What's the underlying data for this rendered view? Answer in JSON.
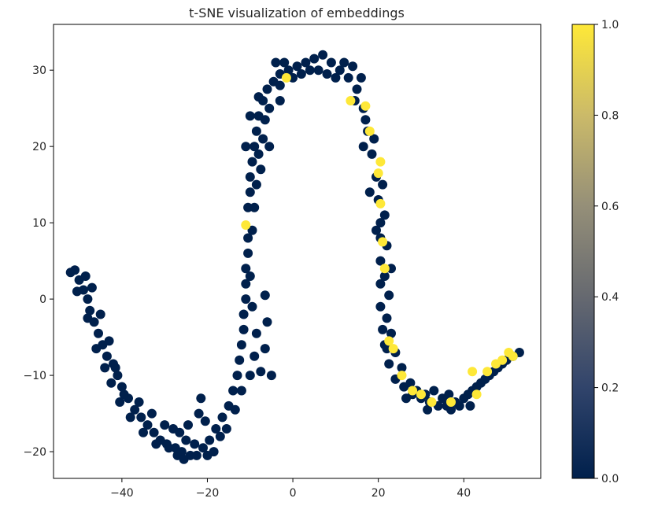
{
  "chart_data": {
    "type": "scatter",
    "title": "t-SNE visualization of embeddings",
    "xlabel": "",
    "ylabel": "",
    "xlim": [
      -56,
      58
    ],
    "ylim": [
      -23.5,
      36
    ],
    "x_ticks": [
      -40,
      -20,
      0,
      20,
      40
    ],
    "x_tick_labels": [
      "−40",
      "−20",
      "0",
      "20",
      "40"
    ],
    "y_ticks": [
      -20,
      -10,
      0,
      10,
      20,
      30
    ],
    "y_tick_labels": [
      "−20",
      "−10",
      "0",
      "10",
      "20",
      "30"
    ],
    "colorbar": {
      "colormap": "cividis",
      "range": [
        0.0,
        1.0
      ],
      "ticks": [
        0.0,
        0.2,
        0.4,
        0.6,
        0.8,
        1.0
      ],
      "tick_labels": [
        "0.0",
        "0.2",
        "0.4",
        "0.6",
        "0.8",
        "1.0"
      ]
    },
    "colors": {
      "low": "#00204c",
      "high": "#fee838"
    },
    "grid": false,
    "points_label_0": [
      [
        -51,
        3.8
      ],
      [
        -50,
        2.5
      ],
      [
        -49,
        1.2
      ],
      [
        -48,
        0
      ],
      [
        -47.5,
        -1.5
      ],
      [
        -46.5,
        -3
      ],
      [
        -45.5,
        -4.5
      ],
      [
        -44.5,
        -6
      ],
      [
        -43.5,
        -7.5
      ],
      [
        -42,
        -8.5
      ],
      [
        -41,
        -10
      ],
      [
        -40,
        -11.5
      ],
      [
        -38.5,
        -13
      ],
      [
        -37,
        -14.5
      ],
      [
        -35.5,
        -15.5
      ],
      [
        -34,
        -16.5
      ],
      [
        -32.5,
        -17.5
      ],
      [
        -31,
        -18.5
      ],
      [
        -29.5,
        -19
      ],
      [
        -27.5,
        -19.5
      ],
      [
        -26,
        -20
      ],
      [
        -24,
        -20.5
      ],
      [
        -22.5,
        -20.5
      ],
      [
        -21,
        -19.5
      ],
      [
        -19.5,
        -18.5
      ],
      [
        -18,
        -17
      ],
      [
        -16.5,
        -15.5
      ],
      [
        -15,
        -14
      ],
      [
        -14,
        -12
      ],
      [
        -13,
        -10
      ],
      [
        -12.5,
        -8
      ],
      [
        -12,
        -6
      ],
      [
        -11.5,
        -4
      ],
      [
        -11.5,
        -2
      ],
      [
        -11,
        0
      ],
      [
        -11,
        2
      ],
      [
        -11,
        4
      ],
      [
        -10.5,
        6
      ],
      [
        -10.5,
        8
      ],
      [
        -10.5,
        12
      ],
      [
        -10,
        14
      ],
      [
        -10,
        16
      ],
      [
        -9.5,
        18
      ],
      [
        -9,
        20
      ],
      [
        -8.5,
        22
      ],
      [
        -8,
        24
      ],
      [
        -7,
        26
      ],
      [
        -6,
        27.5
      ],
      [
        -4.5,
        28.5
      ],
      [
        -3,
        29.5
      ],
      [
        -1,
        30
      ],
      [
        1,
        30.5
      ],
      [
        3,
        31
      ],
      [
        5,
        31.5
      ],
      [
        7,
        32
      ],
      [
        9,
        31
      ],
      [
        11,
        30
      ],
      [
        13,
        29
      ],
      [
        15,
        27.5
      ],
      [
        16.5,
        25
      ],
      [
        17.5,
        22
      ],
      [
        18.5,
        19
      ],
      [
        19.5,
        16
      ],
      [
        20,
        13
      ],
      [
        20.5,
        10
      ],
      [
        20.5,
        8
      ],
      [
        20.5,
        5
      ],
      [
        20.5,
        2
      ],
      [
        20.5,
        -1
      ],
      [
        21,
        -4
      ],
      [
        21.5,
        -6
      ],
      [
        22.5,
        -8.5
      ],
      [
        24,
        -10.5
      ],
      [
        26,
        -11.5
      ],
      [
        28,
        -12.5
      ],
      [
        30,
        -13
      ],
      [
        32,
        -13.5
      ],
      [
        34,
        -14
      ],
      [
        36,
        -14
      ],
      [
        38,
        -13.5
      ],
      [
        40,
        -13
      ],
      [
        42,
        -12
      ],
      [
        44,
        -11
      ],
      [
        46,
        -10
      ],
      [
        48,
        -9
      ],
      [
        50,
        -8
      ],
      [
        51.5,
        -7.5
      ],
      [
        53,
        -7
      ],
      [
        -48.5,
        3
      ],
      [
        -47,
        1.5
      ],
      [
        -45,
        -2
      ],
      [
        -43,
        -5.5
      ],
      [
        -41.5,
        -9
      ],
      [
        -39.5,
        -12.5
      ],
      [
        -36,
        -13.5
      ],
      [
        -33,
        -15
      ],
      [
        -30,
        -16.5
      ],
      [
        -28,
        -17
      ],
      [
        -25,
        -18.5
      ],
      [
        -23,
        -19
      ],
      [
        -20,
        -20.5
      ],
      [
        -18.5,
        -20
      ],
      [
        -17,
        -18
      ],
      [
        -15.5,
        -17
      ],
      [
        -13.5,
        -14.5
      ],
      [
        -12,
        -12
      ],
      [
        -10,
        -10
      ],
      [
        -9,
        -7.5
      ],
      [
        -8.5,
        -4.5
      ],
      [
        -9.5,
        -1
      ],
      [
        -10,
        3
      ],
      [
        -9.5,
        9
      ],
      [
        -9,
        12
      ],
      [
        -8.5,
        15
      ],
      [
        -8,
        19
      ],
      [
        -7,
        21
      ],
      [
        -6.5,
        23.5
      ],
      [
        -5.5,
        25
      ],
      [
        -7.5,
        17
      ],
      [
        -5.5,
        20
      ],
      [
        -6.5,
        0.5
      ],
      [
        -6,
        -3
      ],
      [
        -6.5,
        -6.5
      ],
      [
        -7.5,
        -9.5
      ],
      [
        -5,
        -10
      ],
      [
        -3,
        28
      ],
      [
        -2,
        31
      ],
      [
        0,
        29
      ],
      [
        2,
        29.5
      ],
      [
        4,
        30
      ],
      [
        6,
        30
      ],
      [
        8,
        29.5
      ],
      [
        10,
        29
      ],
      [
        12,
        31
      ],
      [
        14,
        30.5
      ],
      [
        16,
        29
      ],
      [
        14.5,
        26
      ],
      [
        17,
        23.5
      ],
      [
        19,
        21
      ],
      [
        21,
        15
      ],
      [
        21.5,
        11
      ],
      [
        22,
        7
      ],
      [
        21.5,
        3
      ],
      [
        22.5,
        0.5
      ],
      [
        22,
        -2.5
      ],
      [
        23,
        -4.5
      ],
      [
        24,
        -7
      ],
      [
        25.5,
        -9
      ],
      [
        27.5,
        -11
      ],
      [
        29,
        -12
      ],
      [
        31,
        -12.5
      ],
      [
        33,
        -12
      ],
      [
        35,
        -13
      ],
      [
        37,
        -14.5
      ],
      [
        39,
        -14
      ],
      [
        41,
        -12.5
      ],
      [
        43,
        -11.5
      ],
      [
        45,
        -10.5
      ],
      [
        47,
        -9.5
      ],
      [
        49,
        -8.5
      ],
      [
        -52,
        3.5
      ],
      [
        -50.5,
        1
      ],
      [
        -48,
        -2.5
      ],
      [
        -46,
        -6.5
      ],
      [
        -44,
        -9
      ],
      [
        -42.5,
        -11
      ],
      [
        -40.5,
        -13.5
      ],
      [
        -38,
        -15.5
      ],
      [
        -35,
        -17.5
      ],
      [
        -32,
        -19
      ],
      [
        -29,
        -19.5
      ],
      [
        -27,
        -20.5
      ],
      [
        -25.5,
        -21
      ],
      [
        -21.5,
        -13
      ],
      [
        -22,
        -15
      ],
      [
        -20.5,
        -16
      ],
      [
        -24.5,
        -16.5
      ],
      [
        -26.5,
        -17.5
      ],
      [
        -11,
        20
      ],
      [
        -10,
        24
      ],
      [
        -8,
        26.5
      ],
      [
        -4,
        31
      ],
      [
        -3,
        26
      ],
      [
        16.5,
        20
      ],
      [
        18,
        14
      ],
      [
        19.5,
        9
      ],
      [
        23,
        4
      ],
      [
        22,
        -6.5
      ],
      [
        26.5,
        -13
      ],
      [
        31.5,
        -14.5
      ],
      [
        36.5,
        -12.5
      ],
      [
        41.5,
        -14
      ]
    ],
    "points_label_1": [
      [
        -11,
        9.7
      ],
      [
        -1.5,
        29
      ],
      [
        17,
        25.3
      ],
      [
        18,
        22
      ],
      [
        20,
        16.5
      ],
      [
        20.5,
        12.5
      ],
      [
        21,
        7.5
      ],
      [
        21.5,
        4
      ],
      [
        22.5,
        -5.5
      ],
      [
        23.5,
        -6.5
      ],
      [
        25.5,
        -10
      ],
      [
        28,
        -12
      ],
      [
        32.5,
        -13.5
      ],
      [
        37,
        -13.5
      ],
      [
        42,
        -9.5
      ],
      [
        43,
        -12.5
      ],
      [
        45.5,
        -9.5
      ],
      [
        47.5,
        -8.5
      ],
      [
        49,
        -8
      ],
      [
        50.5,
        -7
      ],
      [
        51.5,
        -7.5
      ],
      [
        13.5,
        26
      ],
      [
        20.5,
        18
      ],
      [
        30,
        -12.5
      ]
    ]
  }
}
